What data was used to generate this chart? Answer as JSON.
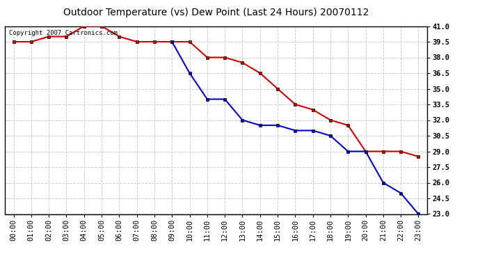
{
  "title": "Outdoor Temperature (vs) Dew Point (Last 24 Hours) 20070112",
  "copyright_text": "Copyright 2007 Cartronics.com",
  "hours": [
    "00:00",
    "01:00",
    "02:00",
    "03:00",
    "04:00",
    "05:00",
    "06:00",
    "07:00",
    "08:00",
    "09:00",
    "10:00",
    "11:00",
    "12:00",
    "13:00",
    "14:00",
    "15:00",
    "16:00",
    "17:00",
    "18:00",
    "19:00",
    "20:00",
    "21:00",
    "22:00",
    "23:00"
  ],
  "temp_red": [
    39.5,
    39.5,
    40.0,
    40.0,
    41.0,
    41.0,
    40.0,
    39.5,
    39.5,
    39.5,
    39.5,
    38.0,
    38.0,
    37.5,
    36.5,
    35.0,
    33.5,
    33.0,
    32.0,
    31.5,
    29.0,
    29.0,
    29.0,
    28.5
  ],
  "temp_blue": [
    null,
    null,
    null,
    null,
    null,
    null,
    null,
    null,
    null,
    39.5,
    36.5,
    34.0,
    34.0,
    32.0,
    31.5,
    31.5,
    31.0,
    31.0,
    30.5,
    29.0,
    29.0,
    26.0,
    25.0,
    23.0
  ],
  "ylim_min": 23.0,
  "ylim_max": 41.0,
  "yticks": [
    23.0,
    24.5,
    26.0,
    27.5,
    29.0,
    30.5,
    32.0,
    33.5,
    35.0,
    36.5,
    38.0,
    39.5,
    41.0
  ],
  "red_color": "#cc0000",
  "blue_color": "#0000cc",
  "bg_color": "#ffffff",
  "plot_bg_color": "#ffffff",
  "grid_color": "#cccccc",
  "title_fontsize": 10,
  "tick_fontsize": 7.5
}
